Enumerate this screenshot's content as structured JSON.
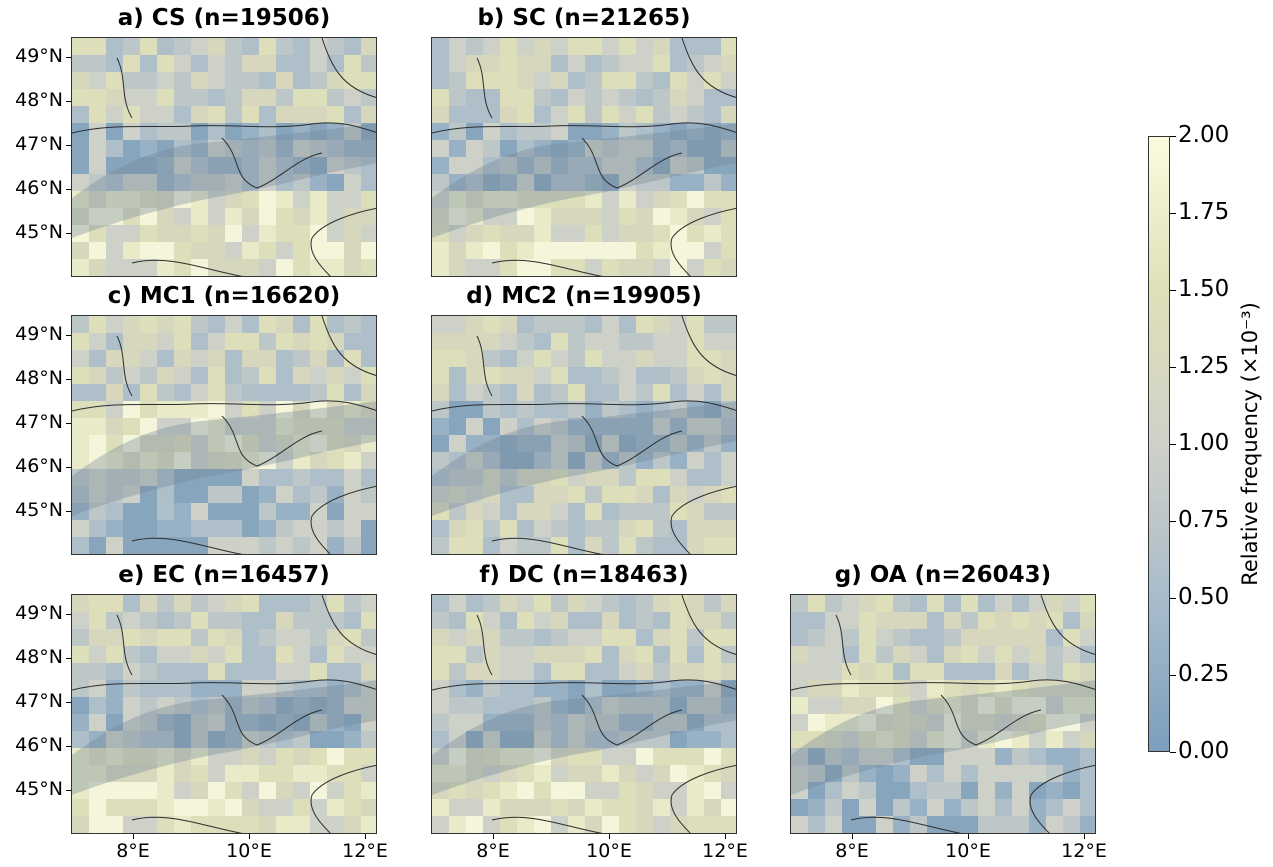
{
  "panels": [
    {
      "id": "a",
      "title": "a) CS (n=19506)",
      "alps_tone": "blue",
      "south_tone": "yellow"
    },
    {
      "id": "b",
      "title": "b) SC (n=21265)",
      "alps_tone": "blue",
      "south_tone": "yellow"
    },
    {
      "id": "c",
      "title": "c) MC1 (n=16620)",
      "alps_tone": "yellow",
      "south_tone": "blue"
    },
    {
      "id": "d",
      "title": "d) MC2 (n=19905)",
      "alps_tone": "blue",
      "south_tone": "mixed"
    },
    {
      "id": "e",
      "title": "e) EC (n=16457)",
      "alps_tone": "blue",
      "south_tone": "yellow"
    },
    {
      "id": "f",
      "title": "f) DC (n=18463)",
      "alps_tone": "blue",
      "south_tone": "yellow"
    },
    {
      "id": "g",
      "title": "g) OA (n=26043)",
      "alps_tone": "yellow",
      "south_tone": "blue"
    }
  ],
  "lat_labels": [
    "49°N",
    "48°N",
    "47°N",
    "46°N",
    "45°N"
  ],
  "lon_labels": [
    "8°E",
    "10°E",
    "12°E"
  ],
  "colorbar": {
    "title": "Relative frequency (×10⁻³)",
    "tick_labels": [
      "2.00",
      "1.75",
      "1.50",
      "1.25",
      "1.00",
      "0.75",
      "0.50",
      "0.25",
      "0.00"
    ],
    "range": [
      0,
      2
    ],
    "color_low": "#7b9fbd",
    "color_mid": "#cfd1c9",
    "color_high": "#fbfbdf"
  }
}
